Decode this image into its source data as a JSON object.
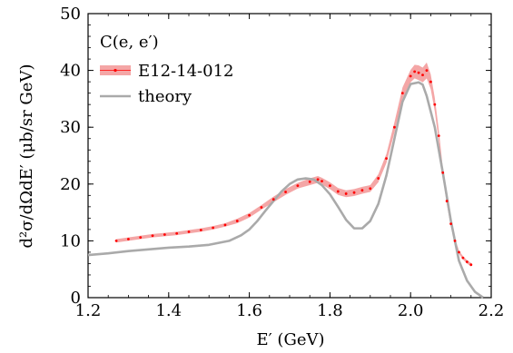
{
  "chart_data": {
    "type": "scatter",
    "xlabel": "E′ (GeV)",
    "ylabel": "d²σ/dΩdE′ (μb/sr GeV)",
    "xlim": [
      1.2,
      2.2
    ],
    "ylim": [
      0,
      50
    ],
    "xticks": [
      1.2,
      1.4,
      1.6,
      1.8,
      2.0,
      2.2
    ],
    "yticks": [
      0,
      10,
      20,
      30,
      40,
      50
    ],
    "xtick_labels": [
      "1.2",
      "1.4",
      "1.6",
      "1.8",
      "2.0",
      "2.2"
    ],
    "ytick_labels": [
      "0",
      "10",
      "20",
      "30",
      "40",
      "50"
    ],
    "grid": false,
    "legend_placement": "top-left",
    "legend_title": "C(e, e′)",
    "series": [
      {
        "name": "E12-14-012",
        "kind": "points_with_error_band",
        "color": "#ff0000",
        "band_color": "#f4a6a6",
        "x": [
          1.27,
          1.3,
          1.33,
          1.36,
          1.39,
          1.42,
          1.45,
          1.48,
          1.51,
          1.54,
          1.57,
          1.6,
          1.63,
          1.66,
          1.69,
          1.72,
          1.75,
          1.77,
          1.78,
          1.8,
          1.82,
          1.84,
          1.86,
          1.88,
          1.9,
          1.92,
          1.94,
          1.96,
          1.98,
          2.0,
          2.01,
          2.02,
          2.03,
          2.04,
          2.05,
          2.06,
          2.07,
          2.08,
          2.09,
          2.1,
          2.11,
          2.12,
          2.13,
          2.14,
          2.15
        ],
        "y": [
          10.0,
          10.3,
          10.6,
          10.9,
          11.1,
          11.3,
          11.6,
          11.9,
          12.3,
          12.8,
          13.5,
          14.5,
          15.9,
          17.3,
          18.6,
          19.7,
          20.4,
          20.8,
          20.5,
          19.7,
          18.7,
          18.3,
          18.5,
          18.9,
          19.2,
          21.0,
          24.5,
          30.0,
          36.0,
          39.0,
          39.8,
          39.6,
          39.2,
          40.0,
          38.0,
          34.0,
          28.5,
          22.0,
          17.0,
          13.0,
          10.0,
          8.0,
          7.0,
          6.3,
          5.8
        ],
        "err": [
          0.3,
          0.3,
          0.3,
          0.3,
          0.3,
          0.3,
          0.3,
          0.3,
          0.3,
          0.3,
          0.4,
          0.4,
          0.4,
          0.5,
          0.5,
          0.5,
          0.6,
          0.6,
          0.6,
          0.6,
          0.6,
          0.6,
          0.6,
          0.6,
          0.6,
          0.7,
          0.8,
          0.9,
          1.0,
          1.1,
          1.2,
          1.3,
          1.3,
          1.4,
          1.3,
          1.2,
          1.0,
          0.8,
          0.6,
          0.5,
          0.4,
          0.3,
          0.3,
          0.3,
          0.3
        ]
      },
      {
        "name": "theory",
        "kind": "line",
        "color": "#aaaaaa",
        "x": [
          1.2,
          1.25,
          1.3,
          1.35,
          1.4,
          1.45,
          1.5,
          1.55,
          1.58,
          1.6,
          1.62,
          1.64,
          1.66,
          1.68,
          1.7,
          1.72,
          1.74,
          1.76,
          1.78,
          1.8,
          1.82,
          1.84,
          1.86,
          1.88,
          1.9,
          1.92,
          1.94,
          1.96,
          1.98,
          2.0,
          2.02,
          2.03,
          2.04,
          2.06,
          2.08,
          2.1,
          2.12,
          2.14,
          2.16,
          2.18
        ],
        "y": [
          7.5,
          7.8,
          8.2,
          8.5,
          8.8,
          9.0,
          9.3,
          10.0,
          11.0,
          12.0,
          13.5,
          15.3,
          17.0,
          18.7,
          20.0,
          20.8,
          21.0,
          20.8,
          19.8,
          18.2,
          16.0,
          13.7,
          12.2,
          12.2,
          13.5,
          16.5,
          21.5,
          28.0,
          34.5,
          37.6,
          37.9,
          37.5,
          35.5,
          30.0,
          22.0,
          13.5,
          6.5,
          3.0,
          1.0,
          0.0
        ]
      }
    ]
  }
}
